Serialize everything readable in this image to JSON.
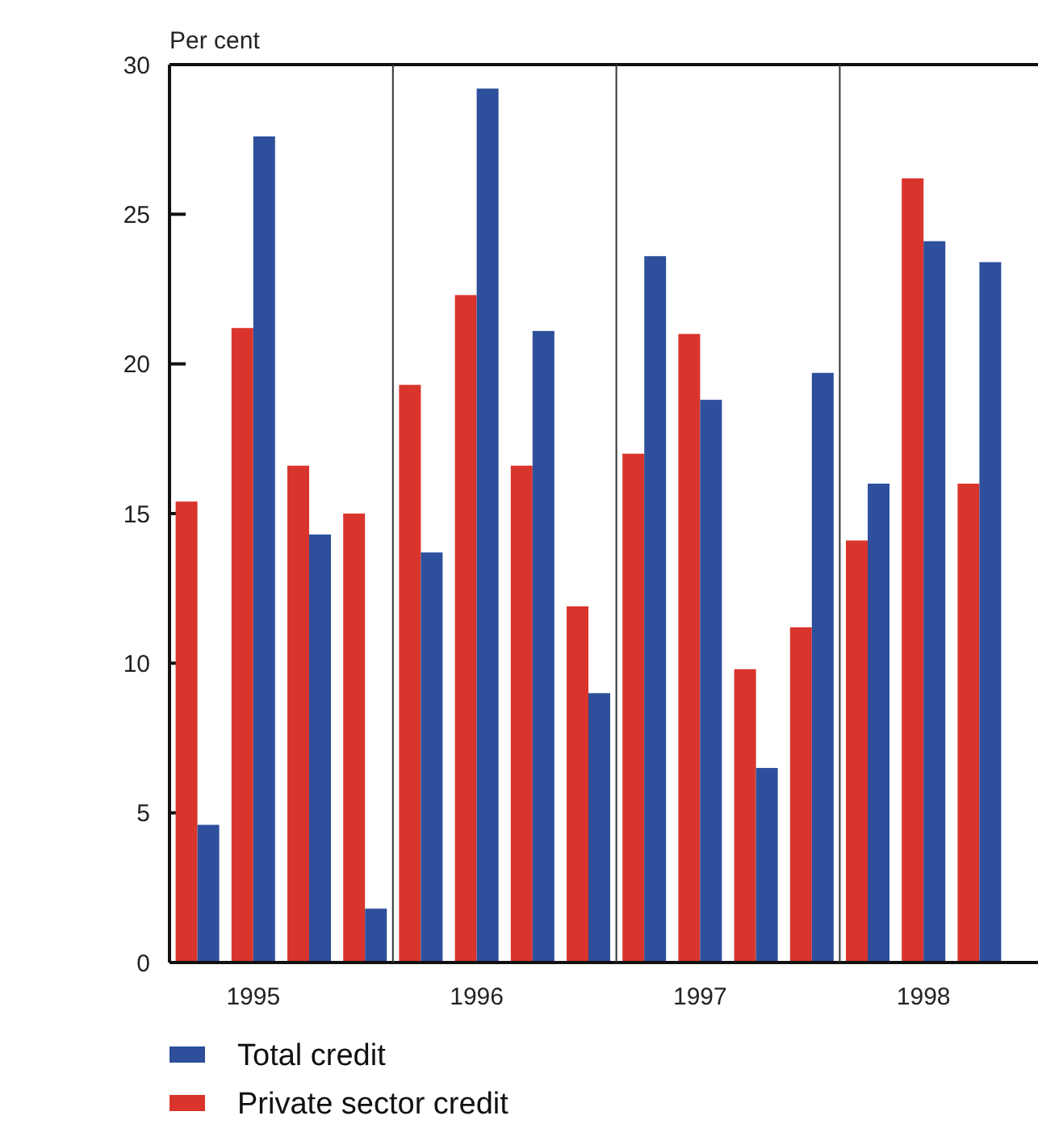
{
  "chart_data": {
    "type": "bar",
    "ylabel": "Per cent",
    "categories": [
      null,
      "1995",
      null,
      null,
      null,
      "1996",
      null,
      null,
      null,
      "1997",
      null,
      null,
      null,
      "1998",
      null
    ],
    "series": [
      {
        "name": "Private sector credit",
        "color": "#d9352c",
        "values": [
          15.4,
          21.2,
          16.6,
          15.0,
          19.3,
          22.3,
          16.6,
          11.9,
          17.0,
          21.0,
          9.8,
          11.2,
          14.1,
          26.2,
          16.0
        ]
      },
      {
        "name": "Total credit",
        "color": "#2d4f9c",
        "values": [
          4.6,
          27.6,
          14.3,
          1.8,
          13.7,
          29.2,
          21.1,
          9.0,
          23.6,
          18.8,
          6.5,
          19.7,
          16.0,
          24.1,
          23.4
        ]
      }
    ],
    "ylim": [
      0,
      30
    ],
    "yticks": [
      0,
      5,
      10,
      15,
      20,
      25,
      30
    ],
    "grid": false,
    "legend": "bottom"
  }
}
